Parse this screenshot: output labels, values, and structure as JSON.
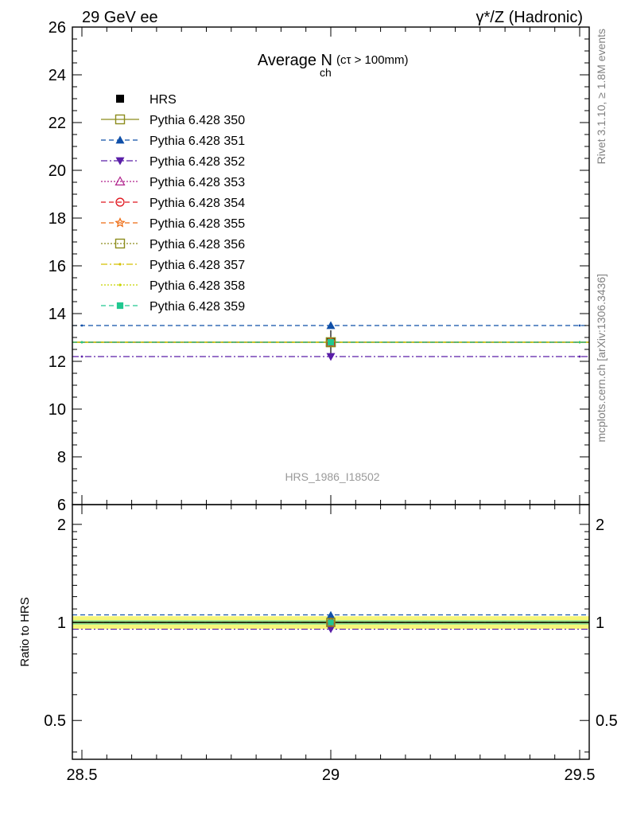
{
  "header": {
    "left": "29 GeV ee",
    "right": "γ*/Z (Hadronic)"
  },
  "side": {
    "rivet": "Rivet 3.1.10, ≥ 1.8M events",
    "mcplots": "mcplots.cern.ch [arXiv:1306.3436]"
  },
  "watermark": "HRS_1986_I18502",
  "chart_data": {
    "type": "line",
    "title_main": "Average N",
    "title_sub": "ch",
    "title_cut": "(cτ > 100mm)",
    "xlim": [
      28.5,
      29.5
    ],
    "ylim": [
      6,
      26
    ],
    "x_ticks": [
      "28.5",
      "29",
      "29.5"
    ],
    "y_ticks": [
      "6",
      "8",
      "10",
      "12",
      "14",
      "16",
      "18",
      "20",
      "22",
      "24",
      "26"
    ],
    "ratio": {
      "ylabel": "Ratio to HRS",
      "ylim": [
        0.38,
        2.3
      ],
      "ticks": [
        "0.5",
        "1",
        "2"
      ],
      "band_outer": [
        0.955,
        1.045
      ],
      "band_inner": [
        0.985,
        1.015
      ]
    },
    "data": {
      "name": "HRS",
      "x": 29,
      "y": 12.8,
      "err": 0.5,
      "color": "#000000"
    },
    "series": [
      {
        "name": "Pythia 6.428 350",
        "value": 12.8,
        "color": "#8c8c1c",
        "dash": "",
        "marker": "square-open"
      },
      {
        "name": "Pythia 6.428 351",
        "value": 13.5,
        "color": "#0f4fa8",
        "dash": "6,4",
        "marker": "triangle-up"
      },
      {
        "name": "Pythia 6.428 352",
        "value": 12.2,
        "color": "#5a1ea8",
        "dash": "8,3,2,3",
        "marker": "triangle-down"
      },
      {
        "name": "Pythia 6.428 353",
        "value": 12.8,
        "color": "#b0228c",
        "dash": "2,2",
        "marker": "triangle-open"
      },
      {
        "name": "Pythia 6.428 354",
        "value": 12.8,
        "color": "#e0161e",
        "dash": "6,4",
        "marker": "circle-open"
      },
      {
        "name": "Pythia 6.428 355",
        "value": 12.8,
        "color": "#ee6a10",
        "dash": "6,4",
        "marker": "star-open"
      },
      {
        "name": "Pythia 6.428 356",
        "value": 12.8,
        "color": "#8c8c1c",
        "dash": "2,2",
        "marker": "square-open"
      },
      {
        "name": "Pythia 6.428 357",
        "value": 12.8,
        "color": "#d4c000",
        "dash": "8,3,2,3",
        "marker": "dot"
      },
      {
        "name": "Pythia 6.428 358",
        "value": 12.8,
        "color": "#c8d400",
        "dash": "2,2",
        "marker": "dot"
      },
      {
        "name": "Pythia 6.428 359",
        "value": 12.8,
        "color": "#20c890",
        "dash": "6,4",
        "marker": "square"
      }
    ]
  }
}
